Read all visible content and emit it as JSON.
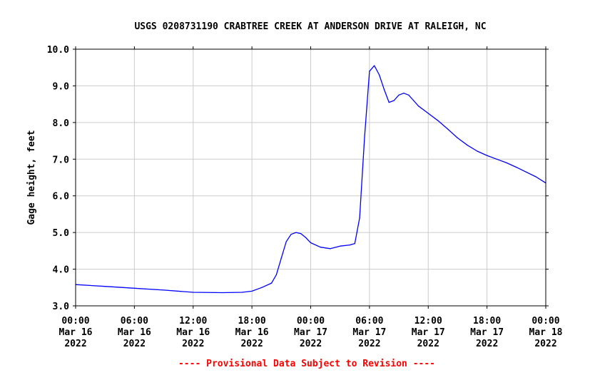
{
  "chart_data": {
    "type": "line",
    "title": "USGS 0208731190 CRABTREE CREEK AT ANDERSON DRIVE AT RALEIGH, NC",
    "ylabel": "Gage height, feet",
    "xlabel": "",
    "ylim": [
      3.0,
      10.0
    ],
    "xlim_hours": [
      0,
      48
    ],
    "y_ticks": [
      "3.0",
      "4.0",
      "5.0",
      "6.0",
      "7.0",
      "8.0",
      "9.0",
      "10.0"
    ],
    "x_ticks": [
      {
        "time": "00:00",
        "date": "Mar 16",
        "year": "2022"
      },
      {
        "time": "06:00",
        "date": "Mar 16",
        "year": "2022"
      },
      {
        "time": "12:00",
        "date": "Mar 16",
        "year": "2022"
      },
      {
        "time": "18:00",
        "date": "Mar 16",
        "year": "2022"
      },
      {
        "time": "00:00",
        "date": "Mar 17",
        "year": "2022"
      },
      {
        "time": "06:00",
        "date": "Mar 17",
        "year": "2022"
      },
      {
        "time": "12:00",
        "date": "Mar 17",
        "year": "2022"
      },
      {
        "time": "18:00",
        "date": "Mar 17",
        "year": "2022"
      },
      {
        "time": "00:00",
        "date": "Mar 18",
        "year": "2022"
      }
    ],
    "grid": true,
    "series": [
      {
        "color": "#0000ff",
        "x_hours": [
          0,
          3,
          6,
          9,
          12,
          15,
          17,
          18,
          19,
          20,
          20.5,
          21,
          21.5,
          22,
          22.5,
          23,
          23.5,
          24,
          25,
          26,
          27,
          28,
          28.5,
          29,
          29.5,
          30,
          30.5,
          31,
          31.5,
          32,
          32.5,
          33,
          33.5,
          34,
          34.5,
          35,
          36,
          37,
          38,
          39,
          40,
          41,
          42,
          43,
          44,
          45,
          46,
          47,
          48
        ],
        "y": [
          3.58,
          3.53,
          3.48,
          3.43,
          3.37,
          3.36,
          3.37,
          3.4,
          3.5,
          3.62,
          3.85,
          4.3,
          4.75,
          4.95,
          5.0,
          4.97,
          4.86,
          4.72,
          4.6,
          4.56,
          4.63,
          4.66,
          4.7,
          5.4,
          7.6,
          9.4,
          9.55,
          9.3,
          8.9,
          8.55,
          8.6,
          8.75,
          8.8,
          8.75,
          8.6,
          8.45,
          8.25,
          8.05,
          7.82,
          7.58,
          7.38,
          7.22,
          7.1,
          7.0,
          6.9,
          6.78,
          6.65,
          6.52,
          6.35
        ]
      }
    ]
  },
  "note": "---- Provisional Data Subject to Revision ----"
}
